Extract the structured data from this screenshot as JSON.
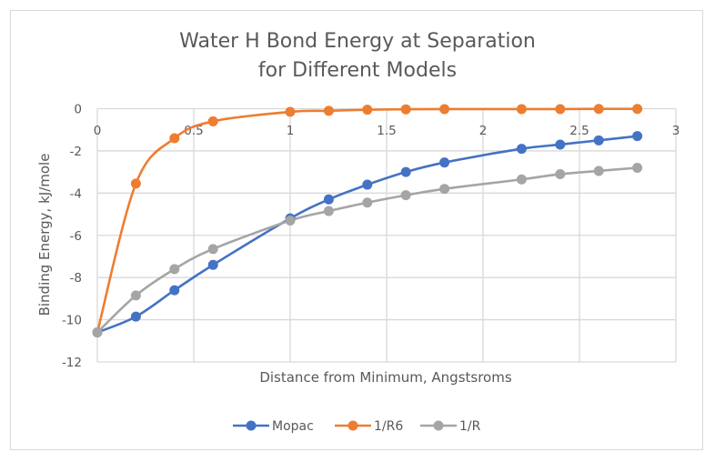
{
  "chart_data": {
    "type": "line",
    "title_line1": "Water H Bond  Energy at Separation",
    "title_line2": "for Different Models",
    "xlabel": "Distance from Minimum, Angstsroms",
    "ylabel": "Binding Energy, kJ/mole",
    "xlim": [
      0,
      3
    ],
    "ylim": [
      -12,
      0
    ],
    "xticks": [
      0,
      0.5,
      1,
      1.5,
      2,
      2.5,
      3
    ],
    "xtick_labels": [
      "0",
      "0.5",
      "1",
      "1.5",
      "2",
      "2.5",
      "3"
    ],
    "yticks": [
      0,
      -2,
      -4,
      -6,
      -8,
      -10,
      -12
    ],
    "ytick_labels": [
      "0",
      "-2",
      "-4",
      "-6",
      "-8",
      "-10",
      "-12"
    ],
    "grid": true,
    "smooth": true,
    "legend_position": "bottom",
    "x": [
      0,
      0.2,
      0.4,
      0.6,
      1.0,
      1.2,
      1.4,
      1.6,
      1.8,
      2.2,
      2.4,
      2.6,
      2.8
    ],
    "series": [
      {
        "name": "Mopac",
        "color": "#4472c4",
        "values": [
          -10.6,
          -9.85,
          -8.6,
          -7.4,
          -5.2,
          -4.3,
          -3.6,
          -3.0,
          -2.55,
          -1.9,
          -1.7,
          -1.5,
          -1.3
        ]
      },
      {
        "name": "1/R6",
        "color": "#ed7d31",
        "values": [
          -10.6,
          -3.55,
          -1.4,
          -0.6,
          -0.15,
          -0.1,
          -0.05,
          -0.03,
          -0.02,
          -0.02,
          -0.02,
          -0.01,
          -0.01
        ]
      },
      {
        "name": "1/R",
        "color": "#a5a5a5",
        "values": [
          -10.6,
          -8.85,
          -7.6,
          -6.65,
          -5.3,
          -4.85,
          -4.45,
          -4.1,
          -3.8,
          -3.35,
          -3.1,
          -2.95,
          -2.8
        ]
      }
    ]
  }
}
